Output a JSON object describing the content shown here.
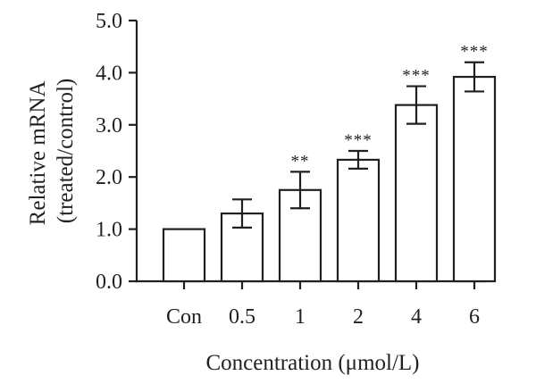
{
  "chart_data": {
    "type": "bar",
    "title": "",
    "xlabel": "Concentration (μmol/L)",
    "ylabel_lines": [
      "Relative mRNA",
      "(treated/control)"
    ],
    "categories": [
      "Con",
      "0.5",
      "1",
      "2",
      "4",
      "6"
    ],
    "values": [
      1.0,
      1.3,
      1.75,
      2.33,
      3.38,
      3.92
    ],
    "error_bars": [
      0.0,
      0.27,
      0.35,
      0.17,
      0.36,
      0.28
    ],
    "significance": [
      "",
      "",
      "**",
      "***",
      "***",
      "***"
    ],
    "ylim": [
      0,
      5
    ],
    "yticks": [
      0,
      1,
      2,
      3,
      4,
      5
    ],
    "ytick_labels": [
      "0.0",
      "1.0",
      "2.0",
      "3.0",
      "4.0",
      "5.0"
    ],
    "grid": false,
    "legend": "none",
    "colors": {
      "bar_fill": "#ffffff",
      "stroke": "#231f20",
      "text": "#231f20"
    }
  }
}
